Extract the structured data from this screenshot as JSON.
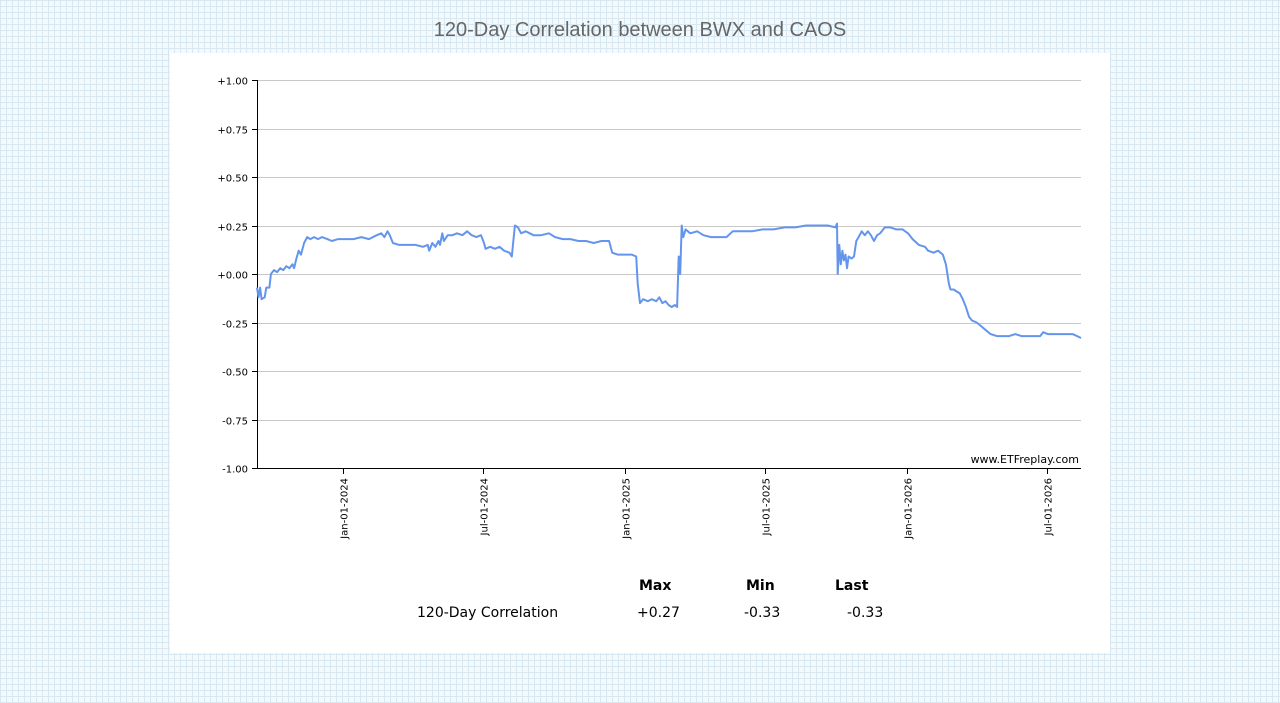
{
  "page": {
    "title": "120-Day Correlation between BWX and CAOS"
  },
  "chart_data": {
    "type": "line",
    "title": "120-Day Correlation between BWX and CAOS",
    "xlabel": "",
    "ylabel": "",
    "ylim": [
      -1.0,
      1.0
    ],
    "xlim": [
      "2023-09-12",
      "2026-08-14"
    ],
    "grid": true,
    "y_ticks": [
      "+1.00",
      "+0.75",
      "+0.50",
      "+0.25",
      "+0.00",
      "-0.25",
      "-0.50",
      "-0.75",
      "-1.00"
    ],
    "x_ticks": [
      "Jan-01-2024",
      "Jul-01-2024",
      "Jan-01-2025",
      "Jul-01-2025",
      "Jan-01-2026",
      "Jul-01-2026"
    ],
    "watermark": "www.ETFreplay.com",
    "line_color": "#6495ED",
    "series": [
      {
        "points": [
          [
            "2023-09-12",
            -0.07
          ],
          [
            "2023-09-14",
            -0.12
          ],
          [
            "2023-09-16",
            -0.07
          ],
          [
            "2023-09-18",
            -0.13
          ],
          [
            "2023-09-22",
            -0.12
          ],
          [
            "2023-09-24",
            -0.07
          ],
          [
            "2023-09-28",
            -0.07
          ],
          [
            "2023-09-30",
            0.0
          ],
          [
            "2023-10-04",
            0.02
          ],
          [
            "2023-10-08",
            0.01
          ],
          [
            "2023-10-12",
            0.03
          ],
          [
            "2023-10-16",
            0.02
          ],
          [
            "2023-10-20",
            0.04
          ],
          [
            "2023-10-24",
            0.03
          ],
          [
            "2023-10-28",
            0.05
          ],
          [
            "2023-10-30",
            0.03
          ],
          [
            "2023-11-02",
            0.08
          ],
          [
            "2023-11-05",
            0.12
          ],
          [
            "2023-11-08",
            0.1
          ],
          [
            "2023-11-12",
            0.16
          ],
          [
            "2023-11-16",
            0.19
          ],
          [
            "2023-11-20",
            0.18
          ],
          [
            "2023-11-25",
            0.19
          ],
          [
            "2023-11-30",
            0.18
          ],
          [
            "2023-12-05",
            0.19
          ],
          [
            "2023-12-12",
            0.18
          ],
          [
            "2023-12-18",
            0.17
          ],
          [
            "2023-12-26",
            0.18
          ],
          [
            "2024-01-05",
            0.18
          ],
          [
            "2024-01-15",
            0.18
          ],
          [
            "2024-01-25",
            0.19
          ],
          [
            "2024-02-04",
            0.18
          ],
          [
            "2024-02-14",
            0.2
          ],
          [
            "2024-02-20",
            0.21
          ],
          [
            "2024-02-24",
            0.19
          ],
          [
            "2024-02-28",
            0.22
          ],
          [
            "2024-03-02",
            0.2
          ],
          [
            "2024-03-06",
            0.16
          ],
          [
            "2024-03-14",
            0.15
          ],
          [
            "2024-03-24",
            0.15
          ],
          [
            "2024-04-04",
            0.15
          ],
          [
            "2024-04-14",
            0.14
          ],
          [
            "2024-04-20",
            0.15
          ],
          [
            "2024-04-22",
            0.12
          ],
          [
            "2024-04-26",
            0.16
          ],
          [
            "2024-04-30",
            0.14
          ],
          [
            "2024-05-04",
            0.17
          ],
          [
            "2024-05-06",
            0.15
          ],
          [
            "2024-05-09",
            0.21
          ],
          [
            "2024-05-11",
            0.17
          ],
          [
            "2024-05-16",
            0.2
          ],
          [
            "2024-05-22",
            0.2
          ],
          [
            "2024-05-28",
            0.21
          ],
          [
            "2024-06-04",
            0.2
          ],
          [
            "2024-06-10",
            0.22
          ],
          [
            "2024-06-16",
            0.2
          ],
          [
            "2024-06-22",
            0.19
          ],
          [
            "2024-06-28",
            0.2
          ],
          [
            "2024-07-02",
            0.16
          ],
          [
            "2024-07-04",
            0.13
          ],
          [
            "2024-07-10",
            0.14
          ],
          [
            "2024-07-16",
            0.13
          ],
          [
            "2024-07-22",
            0.14
          ],
          [
            "2024-07-28",
            0.12
          ],
          [
            "2024-08-04",
            0.11
          ],
          [
            "2024-08-07",
            0.09
          ],
          [
            "2024-08-11",
            0.25
          ],
          [
            "2024-08-15",
            0.24
          ],
          [
            "2024-08-19",
            0.21
          ],
          [
            "2024-08-25",
            0.22
          ],
          [
            "2024-09-04",
            0.2
          ],
          [
            "2024-09-14",
            0.2
          ],
          [
            "2024-09-24",
            0.21
          ],
          [
            "2024-10-02",
            0.19
          ],
          [
            "2024-10-12",
            0.18
          ],
          [
            "2024-10-22",
            0.18
          ],
          [
            "2024-11-01",
            0.17
          ],
          [
            "2024-11-11",
            0.17
          ],
          [
            "2024-11-21",
            0.16
          ],
          [
            "2024-12-01",
            0.17
          ],
          [
            "2024-12-11",
            0.17
          ],
          [
            "2024-12-15",
            0.11
          ],
          [
            "2024-12-22",
            0.1
          ],
          [
            "2025-01-01",
            0.1
          ],
          [
            "2025-01-09",
            0.1
          ],
          [
            "2025-01-15",
            0.09
          ],
          [
            "2025-01-17",
            -0.05
          ],
          [
            "2025-01-20",
            -0.15
          ],
          [
            "2025-01-24",
            -0.13
          ],
          [
            "2025-01-30",
            -0.14
          ],
          [
            "2025-02-04",
            -0.13
          ],
          [
            "2025-02-10",
            -0.14
          ],
          [
            "2025-02-14",
            -0.12
          ],
          [
            "2025-02-18",
            -0.15
          ],
          [
            "2025-02-22",
            -0.14
          ],
          [
            "2025-02-26",
            -0.16
          ],
          [
            "2025-03-02",
            -0.17
          ],
          [
            "2025-03-06",
            -0.16
          ],
          [
            "2025-03-09",
            -0.17
          ],
          [
            "2025-03-11",
            0.09
          ],
          [
            "2025-03-13",
            0.0
          ],
          [
            "2025-03-15",
            0.25
          ],
          [
            "2025-03-17",
            0.19
          ],
          [
            "2025-03-20",
            0.23
          ],
          [
            "2025-03-26",
            0.21
          ],
          [
            "2025-04-04",
            0.22
          ],
          [
            "2025-04-12",
            0.2
          ],
          [
            "2025-04-22",
            0.19
          ],
          [
            "2025-05-02",
            0.19
          ],
          [
            "2025-05-12",
            0.19
          ],
          [
            "2025-05-20",
            0.22
          ],
          [
            "2025-06-01",
            0.22
          ],
          [
            "2025-06-14",
            0.22
          ],
          [
            "2025-06-28",
            0.23
          ],
          [
            "2025-07-12",
            0.23
          ],
          [
            "2025-07-26",
            0.24
          ],
          [
            "2025-08-09",
            0.24
          ],
          [
            "2025-08-23",
            0.25
          ],
          [
            "2025-09-06",
            0.25
          ],
          [
            "2025-09-20",
            0.25
          ],
          [
            "2025-09-30",
            0.24
          ],
          [
            "2025-10-02",
            0.26
          ],
          [
            "2025-10-03",
            0.0
          ],
          [
            "2025-10-05",
            0.15
          ],
          [
            "2025-10-07",
            0.05
          ],
          [
            "2025-10-09",
            0.12
          ],
          [
            "2025-10-11",
            0.07
          ],
          [
            "2025-10-13",
            0.1
          ],
          [
            "2025-10-15",
            0.03
          ],
          [
            "2025-10-17",
            0.09
          ],
          [
            "2025-10-21",
            0.08
          ],
          [
            "2025-10-24",
            0.09
          ],
          [
            "2025-10-27",
            0.17
          ],
          [
            "2025-10-30",
            0.19
          ],
          [
            "2025-11-03",
            0.22
          ],
          [
            "2025-11-07",
            0.2
          ],
          [
            "2025-11-11",
            0.22
          ],
          [
            "2025-11-15",
            0.2
          ],
          [
            "2025-11-19",
            0.17
          ],
          [
            "2025-11-23",
            0.2
          ],
          [
            "2025-11-27",
            0.21
          ],
          [
            "2025-12-03",
            0.24
          ],
          [
            "2025-12-10",
            0.24
          ],
          [
            "2025-12-18",
            0.23
          ],
          [
            "2025-12-26",
            0.23
          ],
          [
            "2026-01-02",
            0.21
          ],
          [
            "2026-01-08",
            0.18
          ],
          [
            "2026-01-16",
            0.15
          ],
          [
            "2026-01-24",
            0.14
          ],
          [
            "2026-01-28",
            0.12
          ],
          [
            "2026-02-04",
            0.11
          ],
          [
            "2026-02-10",
            0.12
          ],
          [
            "2026-02-16",
            0.1
          ],
          [
            "2026-02-20",
            0.05
          ],
          [
            "2026-02-24",
            -0.05
          ],
          [
            "2026-02-26",
            -0.08
          ],
          [
            "2026-03-02",
            -0.08
          ],
          [
            "2026-03-06",
            -0.09
          ],
          [
            "2026-03-10",
            -0.1
          ],
          [
            "2026-03-14",
            -0.13
          ],
          [
            "2026-03-18",
            -0.17
          ],
          [
            "2026-03-22",
            -0.22
          ],
          [
            "2026-03-26",
            -0.24
          ],
          [
            "2026-04-01",
            -0.25
          ],
          [
            "2026-04-07",
            -0.27
          ],
          [
            "2026-04-13",
            -0.29
          ],
          [
            "2026-04-19",
            -0.31
          ],
          [
            "2026-04-27",
            -0.32
          ],
          [
            "2026-05-05",
            -0.32
          ],
          [
            "2026-05-13",
            -0.32
          ],
          [
            "2026-05-21",
            -0.31
          ],
          [
            "2026-05-29",
            -0.32
          ],
          [
            "2026-06-06",
            -0.32
          ],
          [
            "2026-06-14",
            -0.32
          ],
          [
            "2026-06-22",
            -0.32
          ],
          [
            "2026-06-26",
            -0.3
          ],
          [
            "2026-07-02",
            -0.31
          ],
          [
            "2026-07-10",
            -0.31
          ],
          [
            "2026-07-18",
            -0.31
          ],
          [
            "2026-07-26",
            -0.31
          ],
          [
            "2026-08-03",
            -0.31
          ],
          [
            "2026-08-09",
            -0.32
          ],
          [
            "2026-08-14",
            -0.33
          ]
        ]
      }
    ]
  },
  "stats": {
    "headers": [
      "Max",
      "Min",
      "Last"
    ],
    "row_label": "120-Day Correlation",
    "values": [
      "+0.27",
      "-0.33",
      "-0.33"
    ]
  }
}
